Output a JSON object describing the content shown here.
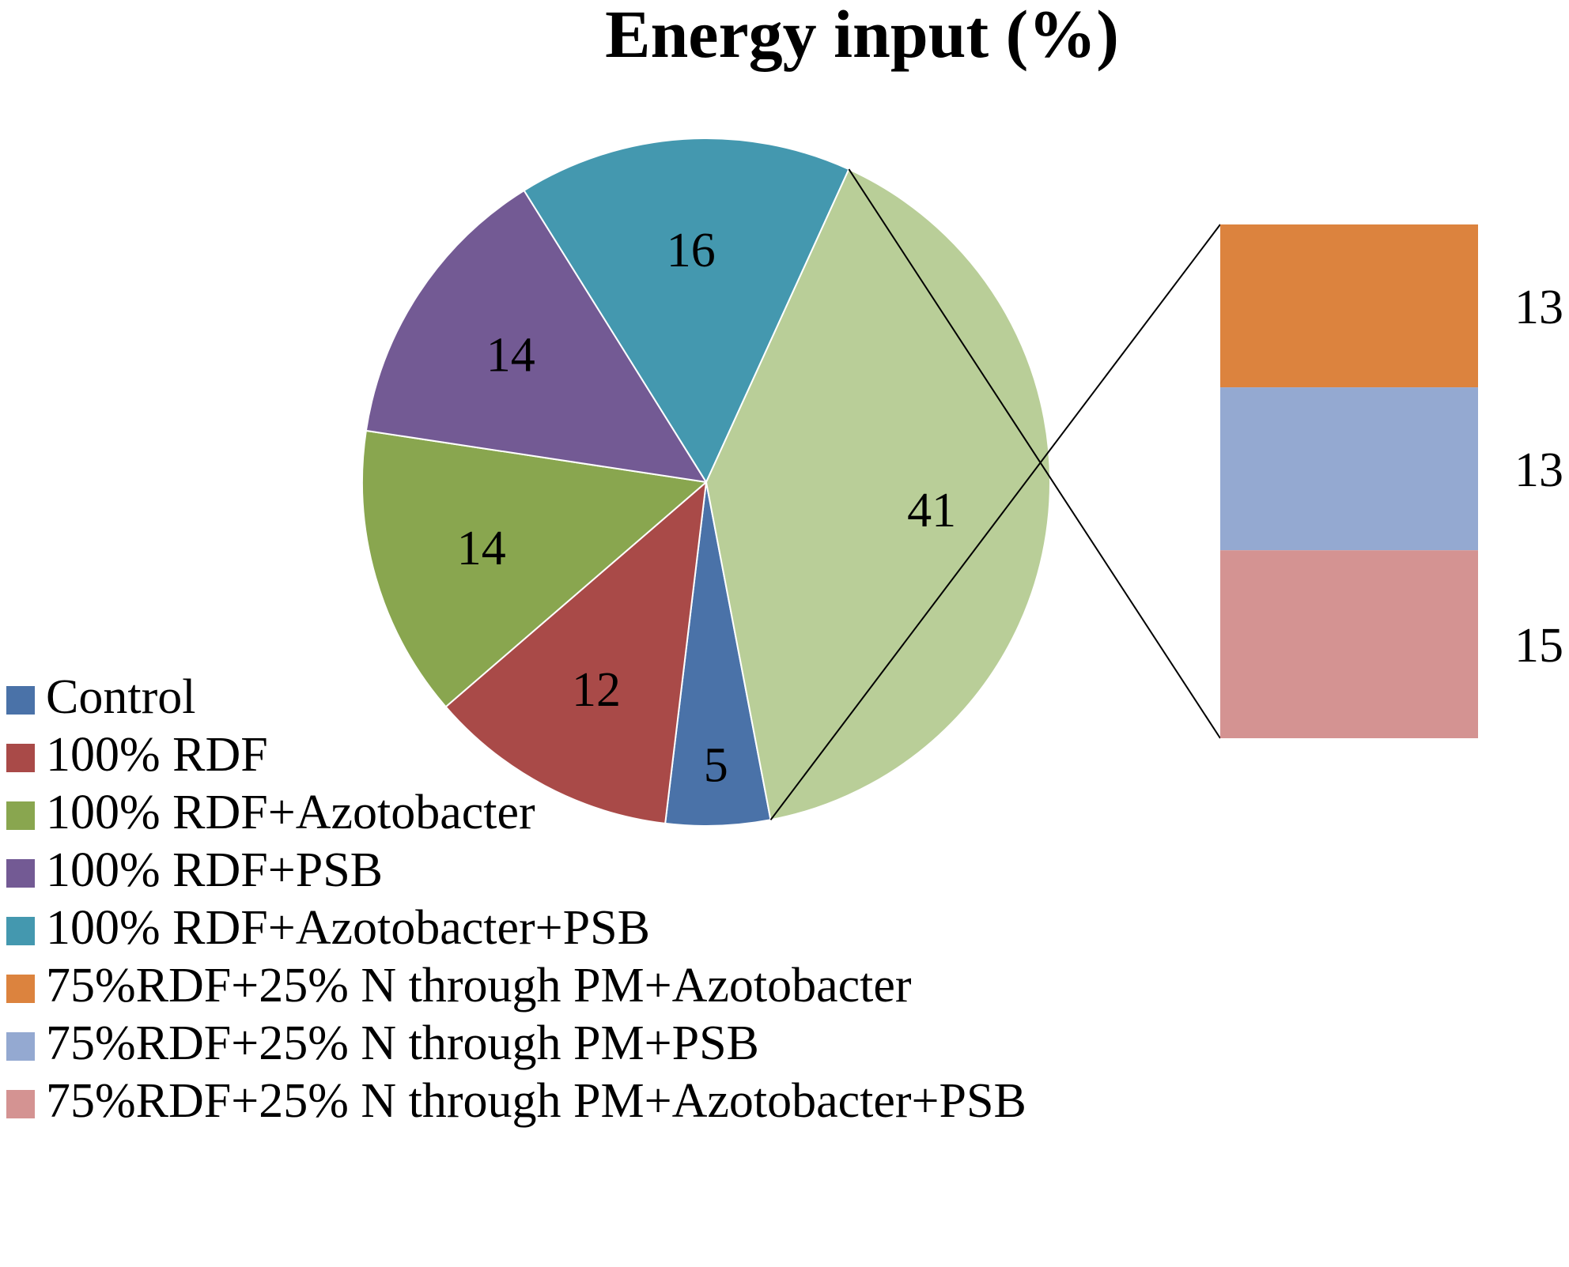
{
  "chart_data": {
    "type": "bar-of-pie",
    "title": "Energy input (%)",
    "categories": [
      "Control",
      "100% RDF",
      "100% RDF+Azotobacter",
      "100% RDF+PSB",
      "100% RDF+Azotobacter+PSB",
      "75%RDF+25% N through PM+Azotobacter",
      "75%RDF+25% N through PM+PSB",
      "75%RDF+25% N through PM+Azotobacter+PSB"
    ],
    "colors": [
      "#4a72a8",
      "#a94a48",
      "#89a64f",
      "#735a94",
      "#4498af",
      "#dc833e",
      "#94a9d1",
      "#d49392"
    ],
    "pie_slices": [
      {
        "category_index": 0,
        "value": 5,
        "label": "5"
      },
      {
        "category_index": 1,
        "value": 12,
        "label": "12"
      },
      {
        "category_index": 2,
        "value": 14,
        "label": "14"
      },
      {
        "category_index": 3,
        "value": 14,
        "label": "14"
      },
      {
        "category_index": 4,
        "value": 16,
        "label": "16"
      },
      {
        "category_index": -1,
        "value": 41,
        "label": "41",
        "color": "#b9ce98",
        "note": "Other"
      }
    ],
    "bar_segments": [
      {
        "category_index": 5,
        "value": 13,
        "label": "13"
      },
      {
        "category_index": 6,
        "value": 13,
        "label": "13"
      },
      {
        "category_index": 7,
        "value": 15,
        "label": "15"
      }
    ],
    "legend_position": "bottom-left"
  }
}
